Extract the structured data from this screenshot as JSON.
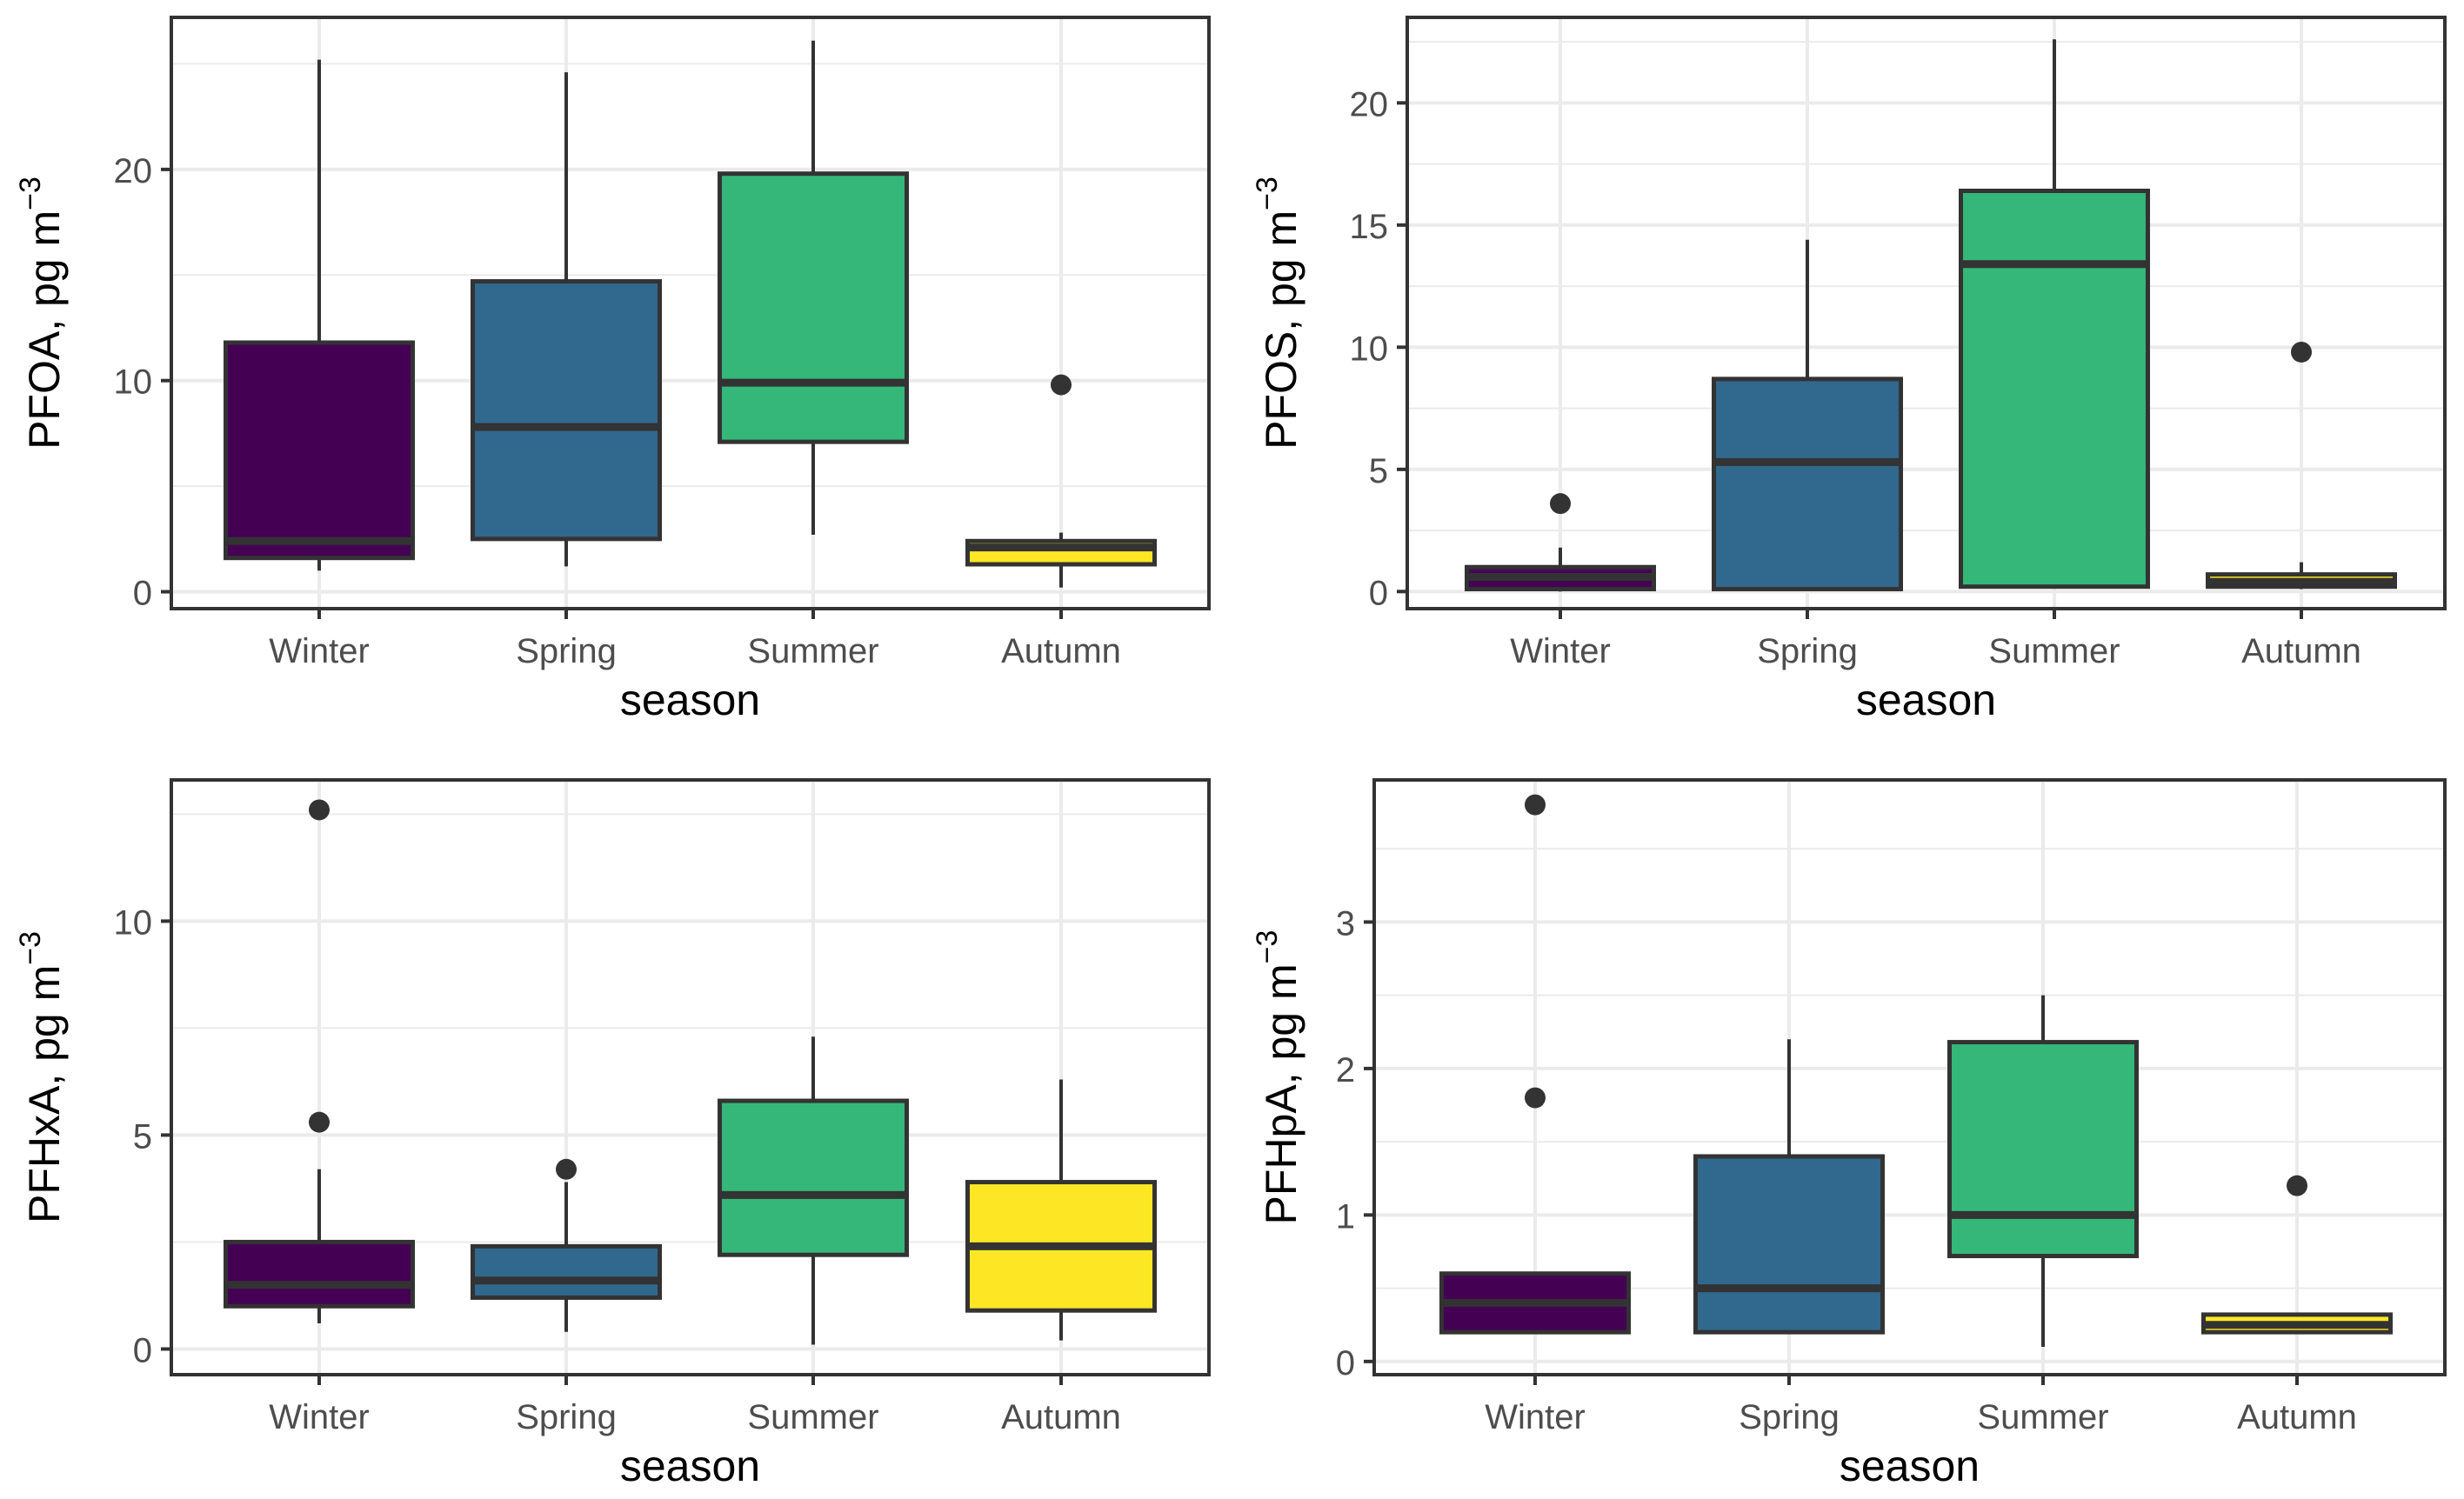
{
  "figure": {
    "categories": [
      "Winter",
      "Spring",
      "Summer",
      "Autumn"
    ],
    "colors": {
      "Winter": "#440154",
      "Spring": "#31688e",
      "Summer": "#35b779",
      "Autumn": "#fde725",
      "outline": "#333333",
      "grid": "#ebebeb",
      "panel_border": "#333333"
    }
  },
  "chart_data": [
    {
      "id": "pfoa",
      "type": "boxplot",
      "title": "",
      "xlabel": "season",
      "ylabel": "PFOA,  pg m",
      "ylabel_sup": "−3",
      "ylim": [
        -0.8,
        27.2
      ],
      "yticks": [
        0,
        10,
        20
      ],
      "categories": [
        "Winter",
        "Spring",
        "Summer",
        "Autumn"
      ],
      "boxes": [
        {
          "category": "Winter",
          "whisker_low": 1.0,
          "q1": 1.6,
          "median": 2.4,
          "q3": 11.8,
          "whisker_high": 25.2,
          "outliers": []
        },
        {
          "category": "Spring",
          "whisker_low": 1.2,
          "q1": 2.5,
          "median": 7.8,
          "q3": 14.7,
          "whisker_high": 24.6,
          "outliers": []
        },
        {
          "category": "Summer",
          "whisker_low": 2.7,
          "q1": 7.1,
          "median": 9.9,
          "q3": 19.8,
          "whisker_high": 26.1,
          "outliers": []
        },
        {
          "category": "Autumn",
          "whisker_low": 0.2,
          "q1": 1.3,
          "median": 2.1,
          "q3": 2.4,
          "whisker_high": 2.8,
          "outliers": [
            9.8
          ]
        }
      ]
    },
    {
      "id": "pfos",
      "type": "boxplot",
      "title": "",
      "xlabel": "season",
      "ylabel": "PFOS,  pg m",
      "ylabel_sup": "−3",
      "ylim": [
        -0.7,
        23.5
      ],
      "yticks": [
        0,
        5,
        10,
        15,
        20
      ],
      "categories": [
        "Winter",
        "Spring",
        "Summer",
        "Autumn"
      ],
      "boxes": [
        {
          "category": "Winter",
          "whisker_low": 0.0,
          "q1": 0.1,
          "median": 0.6,
          "q3": 1.0,
          "whisker_high": 1.8,
          "outliers": [
            3.6
          ]
        },
        {
          "category": "Spring",
          "whisker_low": 0.1,
          "q1": 0.1,
          "median": 5.3,
          "q3": 8.7,
          "whisker_high": 14.4,
          "outliers": []
        },
        {
          "category": "Summer",
          "whisker_low": 0.2,
          "q1": 0.2,
          "median": 13.4,
          "q3": 16.4,
          "whisker_high": 22.6,
          "outliers": []
        },
        {
          "category": "Autumn",
          "whisker_low": 0.1,
          "q1": 0.2,
          "median": 0.4,
          "q3": 0.7,
          "whisker_high": 1.2,
          "outliers": [
            9.8
          ]
        }
      ]
    },
    {
      "id": "pfhxa",
      "type": "boxplot",
      "title": "",
      "xlabel": "season",
      "ylabel": "PFHxA,  pg m",
      "ylabel_sup": "−3",
      "ylim": [
        -0.6,
        13.3
      ],
      "yticks": [
        0,
        5,
        10
      ],
      "categories": [
        "Winter",
        "Spring",
        "Summer",
        "Autumn"
      ],
      "boxes": [
        {
          "category": "Winter",
          "whisker_low": 0.6,
          "q1": 1.0,
          "median": 1.5,
          "q3": 2.5,
          "whisker_high": 4.2,
          "outliers": [
            5.3,
            12.6
          ]
        },
        {
          "category": "Spring",
          "whisker_low": 0.4,
          "q1": 1.2,
          "median": 1.6,
          "q3": 2.4,
          "whisker_high": 3.9,
          "outliers": [
            4.2
          ]
        },
        {
          "category": "Summer",
          "whisker_low": 0.1,
          "q1": 2.2,
          "median": 3.6,
          "q3": 5.8,
          "whisker_high": 7.3,
          "outliers": []
        },
        {
          "category": "Autumn",
          "whisker_low": 0.2,
          "q1": 0.9,
          "median": 2.4,
          "q3": 3.9,
          "whisker_high": 6.3,
          "outliers": []
        }
      ]
    },
    {
      "id": "pfhpa",
      "type": "boxplot",
      "title": "",
      "xlabel": "season",
      "ylabel": "PFHpA,  pg m",
      "ylabel_sup": "−3",
      "ylim": [
        -0.09,
        3.97
      ],
      "yticks": [
        0,
        1,
        2,
        3
      ],
      "categories": [
        "Winter",
        "Spring",
        "Summer",
        "Autumn"
      ],
      "boxes": [
        {
          "category": "Winter",
          "whisker_low": 0.2,
          "q1": 0.2,
          "median": 0.4,
          "q3": 0.6,
          "whisker_high": 0.6,
          "outliers": [
            1.8,
            3.8
          ]
        },
        {
          "category": "Spring",
          "whisker_low": 0.2,
          "q1": 0.2,
          "median": 0.5,
          "q3": 1.4,
          "whisker_high": 2.2,
          "outliers": []
        },
        {
          "category": "Summer",
          "whisker_low": 0.1,
          "q1": 0.72,
          "median": 1.0,
          "q3": 2.18,
          "whisker_high": 2.5,
          "outliers": []
        },
        {
          "category": "Autumn",
          "whisker_low": 0.2,
          "q1": 0.2,
          "median": 0.25,
          "q3": 0.32,
          "whisker_high": 0.32,
          "outliers": [
            1.2
          ]
        }
      ]
    }
  ]
}
